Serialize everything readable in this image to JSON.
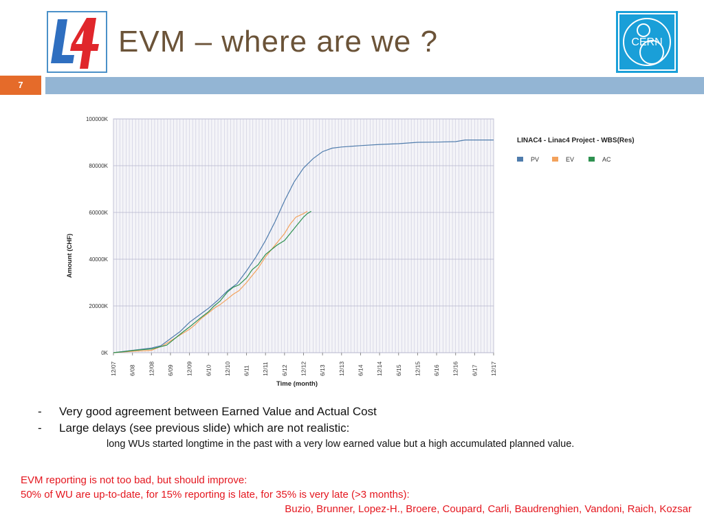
{
  "slide": {
    "title": "EVM – where are we ?",
    "number": "7",
    "logo_left_text": "L4",
    "logo_right_text": "CERN"
  },
  "colors": {
    "title": "#6b5338",
    "band": "#93b5d4",
    "number_box": "#e56b2a",
    "pv": "#4f7cac",
    "ev": "#f3a25c",
    "ac": "#2e9150",
    "red_text": "#e4161e"
  },
  "bullets": [
    {
      "dash": "-",
      "text": "Very good agreement between Earned Value and Actual Cost"
    },
    {
      "dash": "-",
      "text": "Large delays (see previous slide) which are not realistic:"
    }
  ],
  "sub_text": "long WUs started longtime in the past with a very low earned value but a high accumulated planned value.",
  "note_lines": [
    "EVM reporting is not too bad, but should improve:",
    "50% of WU are up-to-date, for 15% reporting is late, for 35% is very late (>3 months):",
    "Buzio, Brunner, Lopez-H., Broere, Coupard, Carli, Baudrenghien, Vandoni, Raich, Kozsar"
  ],
  "chart_data": {
    "type": "line",
    "title": "LINAC4 - Linac4 Project - WBS(Res)",
    "xlabel": "Time (month)",
    "ylabel": "Amount (CHF)",
    "x_ticks": [
      "12/07",
      "6/08",
      "12/08",
      "6/09",
      "12/09",
      "6/10",
      "12/10",
      "6/11",
      "12/11",
      "6/12",
      "12/12",
      "6/13",
      "12/13",
      "6/14",
      "12/14",
      "6/15",
      "12/15",
      "6/16",
      "12/16",
      "6/17",
      "12/17"
    ],
    "y_ticks": [
      "0K",
      "20000K",
      "40000K",
      "60000K",
      "80000K",
      "100000K"
    ],
    "ylim": [
      0,
      100000
    ],
    "grid": true,
    "legend_position": "right",
    "series": [
      {
        "name": "PV",
        "color": "#4f7cac",
        "points": [
          [
            0,
            0
          ],
          [
            1,
            1000
          ],
          [
            2,
            2000
          ],
          [
            2.5,
            3000
          ],
          [
            3,
            6000
          ],
          [
            3.5,
            9000
          ],
          [
            4,
            13000
          ],
          [
            4.5,
            16000
          ],
          [
            5,
            19000
          ],
          [
            5.5,
            22500
          ],
          [
            6,
            26500
          ],
          [
            6.5,
            29500
          ],
          [
            7,
            35000
          ],
          [
            7.5,
            41000
          ],
          [
            8,
            48000
          ],
          [
            8.5,
            56000
          ],
          [
            9,
            65000
          ],
          [
            9.5,
            73000
          ],
          [
            10,
            79000
          ],
          [
            10.5,
            83000
          ],
          [
            11,
            86000
          ],
          [
            11.5,
            87500
          ],
          [
            12,
            88000
          ],
          [
            13,
            88600
          ],
          [
            14,
            89100
          ],
          [
            15,
            89400
          ],
          [
            16,
            90000
          ],
          [
            17,
            90100
          ],
          [
            18,
            90300
          ],
          [
            18.5,
            91000
          ],
          [
            19,
            91000
          ],
          [
            20,
            91000
          ]
        ]
      },
      {
        "name": "EV",
        "color": "#f3a25c",
        "points": [
          [
            0,
            0
          ],
          [
            0.5,
            300
          ],
          [
            1,
            600
          ],
          [
            1.5,
            800
          ],
          [
            2,
            1000
          ],
          [
            2.3,
            2000
          ],
          [
            2.6,
            3000
          ],
          [
            3,
            5000
          ],
          [
            3.3,
            6500
          ],
          [
            3.6,
            8000
          ],
          [
            4,
            10000
          ],
          [
            4.3,
            12000
          ],
          [
            4.6,
            14500
          ],
          [
            5,
            17000
          ],
          [
            5.3,
            19000
          ],
          [
            5.6,
            20500
          ],
          [
            6,
            23000
          ],
          [
            6.3,
            25000
          ],
          [
            6.6,
            26500
          ],
          [
            7,
            30000
          ],
          [
            7.3,
            33000
          ],
          [
            7.6,
            36000
          ],
          [
            8,
            41000
          ],
          [
            8.3,
            44000
          ],
          [
            8.6,
            47000
          ],
          [
            9,
            51000
          ],
          [
            9.3,
            55000
          ],
          [
            9.6,
            58000
          ],
          [
            10,
            59500
          ],
          [
            10.2,
            60500
          ]
        ]
      },
      {
        "name": "AC",
        "color": "#2e9150",
        "points": [
          [
            0,
            0
          ],
          [
            0.5,
            400
          ],
          [
            1,
            900
          ],
          [
            1.5,
            1300
          ],
          [
            2,
            1600
          ],
          [
            2.4,
            2400
          ],
          [
            2.8,
            3200
          ],
          [
            3,
            4500
          ],
          [
            3.3,
            6500
          ],
          [
            3.6,
            8500
          ],
          [
            4,
            11000
          ],
          [
            4.3,
            13000
          ],
          [
            4.6,
            15000
          ],
          [
            5,
            17500
          ],
          [
            5.3,
            20000
          ],
          [
            5.6,
            22000
          ],
          [
            6,
            26000
          ],
          [
            6.3,
            28000
          ],
          [
            6.6,
            29000
          ],
          [
            7,
            32000
          ],
          [
            7.3,
            35500
          ],
          [
            7.6,
            37500
          ],
          [
            8,
            42000
          ],
          [
            8.3,
            44000
          ],
          [
            8.6,
            46000
          ],
          [
            9,
            48000
          ],
          [
            9.3,
            51000
          ],
          [
            9.6,
            54000
          ],
          [
            10,
            58000
          ],
          [
            10.2,
            59500
          ],
          [
            10.4,
            60500
          ]
        ]
      }
    ]
  }
}
